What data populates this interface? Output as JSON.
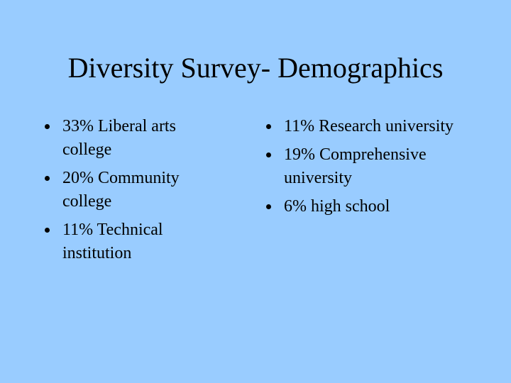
{
  "title": "Diversity Survey- Demographics",
  "left_column": {
    "items": [
      "33% Liberal arts college",
      "20% Community college",
      "11% Technical institution"
    ]
  },
  "right_column": {
    "items": [
      "11% Research university",
      "19% Comprehensive university",
      "6% high school"
    ]
  }
}
